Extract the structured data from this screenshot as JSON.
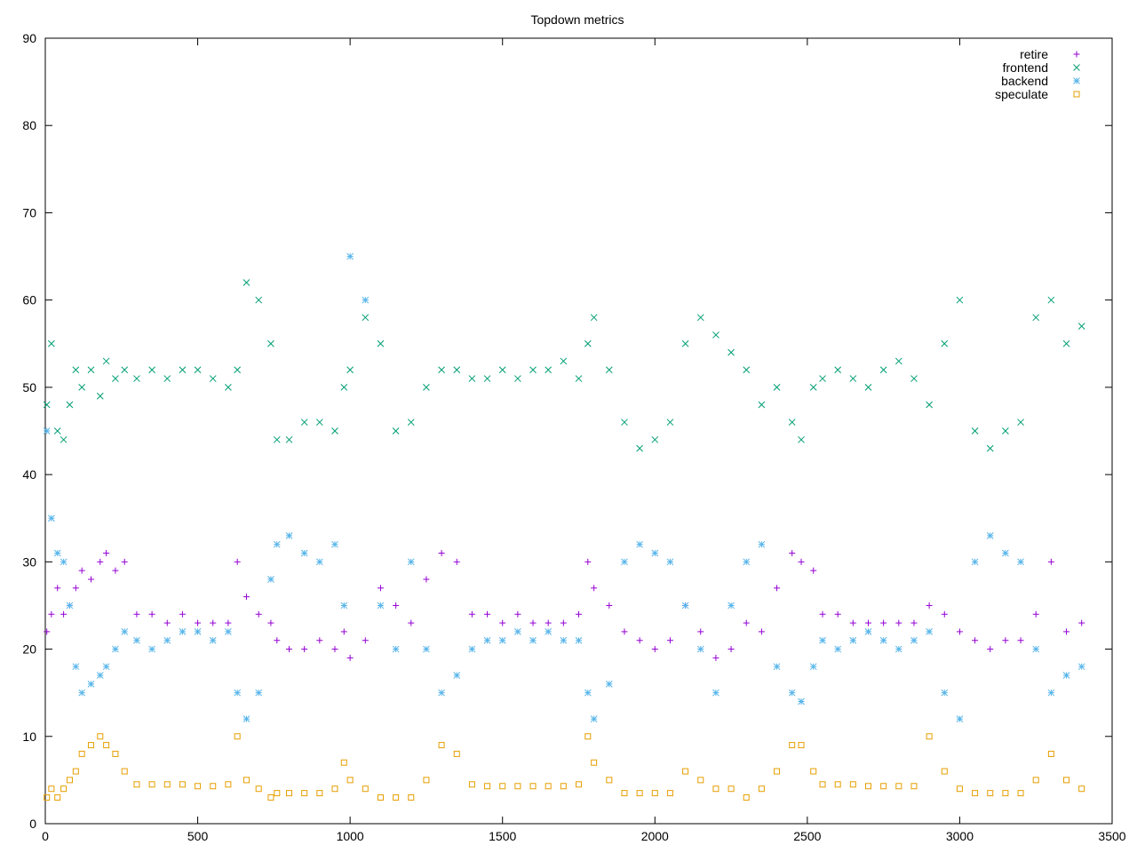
{
  "chart_data": {
    "type": "scatter",
    "title": "Topdown metrics",
    "xlabel": "",
    "ylabel": "",
    "xlim": [
      0,
      3500
    ],
    "ylim": [
      0,
      90
    ],
    "x_ticks": [
      0,
      500,
      1000,
      1500,
      2000,
      2500,
      3000,
      3500
    ],
    "y_ticks": [
      0,
      10,
      20,
      30,
      40,
      50,
      60,
      70,
      80,
      90
    ],
    "grid": false,
    "legend_position": "top-right",
    "series": [
      {
        "name": "retire",
        "marker": "plus",
        "color": "#9400d3",
        "points": [
          [
            5,
            22
          ],
          [
            20,
            24
          ],
          [
            40,
            27
          ],
          [
            60,
            24
          ],
          [
            80,
            25
          ],
          [
            100,
            27
          ],
          [
            120,
            29
          ],
          [
            150,
            28
          ],
          [
            180,
            30
          ],
          [
            200,
            31
          ],
          [
            230,
            29
          ],
          [
            260,
            30
          ],
          [
            300,
            24
          ],
          [
            350,
            24
          ],
          [
            400,
            23
          ],
          [
            450,
            24
          ],
          [
            500,
            23
          ],
          [
            550,
            23
          ],
          [
            600,
            23
          ],
          [
            630,
            30
          ],
          [
            660,
            26
          ],
          [
            700,
            24
          ],
          [
            740,
            23
          ],
          [
            760,
            21
          ],
          [
            800,
            20
          ],
          [
            850,
            20
          ],
          [
            900,
            21
          ],
          [
            950,
            20
          ],
          [
            980,
            22
          ],
          [
            1000,
            19
          ],
          [
            1050,
            21
          ],
          [
            1100,
            27
          ],
          [
            1150,
            25
          ],
          [
            1200,
            23
          ],
          [
            1250,
            28
          ],
          [
            1300,
            31
          ],
          [
            1350,
            30
          ],
          [
            1400,
            24
          ],
          [
            1450,
            24
          ],
          [
            1500,
            23
          ],
          [
            1550,
            24
          ],
          [
            1600,
            23
          ],
          [
            1650,
            23
          ],
          [
            1700,
            23
          ],
          [
            1750,
            24
          ],
          [
            1780,
            30
          ],
          [
            1800,
            27
          ],
          [
            1850,
            25
          ],
          [
            1900,
            22
          ],
          [
            1950,
            21
          ],
          [
            2000,
            20
          ],
          [
            2050,
            21
          ],
          [
            2100,
            25
          ],
          [
            2150,
            22
          ],
          [
            2200,
            19
          ],
          [
            2250,
            20
          ],
          [
            2300,
            23
          ],
          [
            2350,
            22
          ],
          [
            2400,
            27
          ],
          [
            2450,
            31
          ],
          [
            2480,
            30
          ],
          [
            2520,
            29
          ],
          [
            2550,
            24
          ],
          [
            2600,
            24
          ],
          [
            2650,
            23
          ],
          [
            2700,
            23
          ],
          [
            2750,
            23
          ],
          [
            2800,
            23
          ],
          [
            2850,
            23
          ],
          [
            2900,
            25
          ],
          [
            2950,
            24
          ],
          [
            3000,
            22
          ],
          [
            3050,
            21
          ],
          [
            3100,
            20
          ],
          [
            3150,
            21
          ],
          [
            3200,
            21
          ],
          [
            3250,
            24
          ],
          [
            3300,
            30
          ],
          [
            3350,
            22
          ],
          [
            3400,
            23
          ]
        ]
      },
      {
        "name": "frontend",
        "marker": "cross",
        "color": "#009e73",
        "points": [
          [
            5,
            48
          ],
          [
            20,
            55
          ],
          [
            40,
            45
          ],
          [
            60,
            44
          ],
          [
            80,
            48
          ],
          [
            100,
            52
          ],
          [
            120,
            50
          ],
          [
            150,
            52
          ],
          [
            180,
            49
          ],
          [
            200,
            53
          ],
          [
            230,
            51
          ],
          [
            260,
            52
          ],
          [
            300,
            51
          ],
          [
            350,
            52
          ],
          [
            400,
            51
          ],
          [
            450,
            52
          ],
          [
            500,
            52
          ],
          [
            550,
            51
          ],
          [
            600,
            50
          ],
          [
            630,
            52
          ],
          [
            660,
            62
          ],
          [
            700,
            60
          ],
          [
            740,
            55
          ],
          [
            760,
            44
          ],
          [
            800,
            44
          ],
          [
            850,
            46
          ],
          [
            900,
            46
          ],
          [
            950,
            45
          ],
          [
            980,
            50
          ],
          [
            1000,
            52
          ],
          [
            1050,
            58
          ],
          [
            1100,
            55
          ],
          [
            1150,
            45
          ],
          [
            1200,
            46
          ],
          [
            1250,
            50
          ],
          [
            1300,
            52
          ],
          [
            1350,
            52
          ],
          [
            1400,
            51
          ],
          [
            1450,
            51
          ],
          [
            1500,
            52
          ],
          [
            1550,
            51
          ],
          [
            1600,
            52
          ],
          [
            1650,
            52
          ],
          [
            1700,
            53
          ],
          [
            1750,
            51
          ],
          [
            1780,
            55
          ],
          [
            1800,
            58
          ],
          [
            1850,
            52
          ],
          [
            1900,
            46
          ],
          [
            1950,
            43
          ],
          [
            2000,
            44
          ],
          [
            2050,
            46
          ],
          [
            2100,
            55
          ],
          [
            2150,
            58
          ],
          [
            2200,
            56
          ],
          [
            2250,
            54
          ],
          [
            2300,
            52
          ],
          [
            2350,
            48
          ],
          [
            2400,
            50
          ],
          [
            2450,
            46
          ],
          [
            2480,
            44
          ],
          [
            2520,
            50
          ],
          [
            2550,
            51
          ],
          [
            2600,
            52
          ],
          [
            2650,
            51
          ],
          [
            2700,
            50
          ],
          [
            2750,
            52
          ],
          [
            2800,
            53
          ],
          [
            2850,
            51
          ],
          [
            2900,
            48
          ],
          [
            2950,
            55
          ],
          [
            3000,
            60
          ],
          [
            3050,
            45
          ],
          [
            3100,
            43
          ],
          [
            3150,
            45
          ],
          [
            3200,
            46
          ],
          [
            3250,
            58
          ],
          [
            3300,
            60
          ],
          [
            3350,
            55
          ],
          [
            3400,
            57
          ]
        ]
      },
      {
        "name": "backend",
        "marker": "star",
        "color": "#56b4e9",
        "points": [
          [
            5,
            45
          ],
          [
            20,
            35
          ],
          [
            40,
            31
          ],
          [
            60,
            30
          ],
          [
            80,
            25
          ],
          [
            100,
            18
          ],
          [
            120,
            15
          ],
          [
            150,
            16
          ],
          [
            180,
            17
          ],
          [
            200,
            18
          ],
          [
            230,
            20
          ],
          [
            260,
            22
          ],
          [
            300,
            21
          ],
          [
            350,
            20
          ],
          [
            400,
            21
          ],
          [
            450,
            22
          ],
          [
            500,
            22
          ],
          [
            550,
            21
          ],
          [
            600,
            22
          ],
          [
            630,
            15
          ],
          [
            660,
            12
          ],
          [
            700,
            15
          ],
          [
            740,
            28
          ],
          [
            760,
            32
          ],
          [
            800,
            33
          ],
          [
            850,
            31
          ],
          [
            900,
            30
          ],
          [
            950,
            32
          ],
          [
            980,
            25
          ],
          [
            1000,
            65
          ],
          [
            1050,
            60
          ],
          [
            1100,
            25
          ],
          [
            1150,
            20
          ],
          [
            1200,
            30
          ],
          [
            1250,
            20
          ],
          [
            1300,
            15
          ],
          [
            1350,
            17
          ],
          [
            1400,
            20
          ],
          [
            1450,
            21
          ],
          [
            1500,
            21
          ],
          [
            1550,
            22
          ],
          [
            1600,
            21
          ],
          [
            1650,
            22
          ],
          [
            1700,
            21
          ],
          [
            1750,
            21
          ],
          [
            1780,
            15
          ],
          [
            1800,
            12
          ],
          [
            1850,
            16
          ],
          [
            1900,
            30
          ],
          [
            1950,
            32
          ],
          [
            2000,
            31
          ],
          [
            2050,
            30
          ],
          [
            2100,
            25
          ],
          [
            2150,
            20
          ],
          [
            2200,
            15
          ],
          [
            2250,
            25
          ],
          [
            2300,
            30
          ],
          [
            2350,
            32
          ],
          [
            2400,
            18
          ],
          [
            2450,
            15
          ],
          [
            2480,
            14
          ],
          [
            2520,
            18
          ],
          [
            2550,
            21
          ],
          [
            2600,
            20
          ],
          [
            2650,
            21
          ],
          [
            2700,
            22
          ],
          [
            2750,
            21
          ],
          [
            2800,
            20
          ],
          [
            2850,
            21
          ],
          [
            2900,
            22
          ],
          [
            2950,
            15
          ],
          [
            3000,
            12
          ],
          [
            3050,
            30
          ],
          [
            3100,
            33
          ],
          [
            3150,
            31
          ],
          [
            3200,
            30
          ],
          [
            3250,
            20
          ],
          [
            3300,
            15
          ],
          [
            3350,
            17
          ],
          [
            3400,
            18
          ]
        ]
      },
      {
        "name": "speculate",
        "marker": "square",
        "color": "#e69f00",
        "points": [
          [
            5,
            3
          ],
          [
            20,
            4
          ],
          [
            40,
            3
          ],
          [
            60,
            4
          ],
          [
            80,
            5
          ],
          [
            100,
            6
          ],
          [
            120,
            8
          ],
          [
            150,
            9
          ],
          [
            180,
            10
          ],
          [
            200,
            9
          ],
          [
            230,
            8
          ],
          [
            260,
            6
          ],
          [
            300,
            4.5
          ],
          [
            350,
            4.5
          ],
          [
            400,
            4.5
          ],
          [
            450,
            4.5
          ],
          [
            500,
            4.3
          ],
          [
            550,
            4.3
          ],
          [
            600,
            4.5
          ],
          [
            630,
            10
          ],
          [
            660,
            5
          ],
          [
            700,
            4
          ],
          [
            740,
            3
          ],
          [
            760,
            3.5
          ],
          [
            800,
            3.5
          ],
          [
            850,
            3.5
          ],
          [
            900,
            3.5
          ],
          [
            950,
            4
          ],
          [
            980,
            7
          ],
          [
            1000,
            5
          ],
          [
            1050,
            4
          ],
          [
            1100,
            3
          ],
          [
            1150,
            3
          ],
          [
            1200,
            3
          ],
          [
            1250,
            5
          ],
          [
            1300,
            9
          ],
          [
            1350,
            8
          ],
          [
            1400,
            4.5
          ],
          [
            1450,
            4.3
          ],
          [
            1500,
            4.3
          ],
          [
            1550,
            4.3
          ],
          [
            1600,
            4.3
          ],
          [
            1650,
            4.3
          ],
          [
            1700,
            4.3
          ],
          [
            1750,
            4.5
          ],
          [
            1780,
            10
          ],
          [
            1800,
            7
          ],
          [
            1850,
            5
          ],
          [
            1900,
            3.5
          ],
          [
            1950,
            3.5
          ],
          [
            2000,
            3.5
          ],
          [
            2050,
            3.5
          ],
          [
            2100,
            6
          ],
          [
            2150,
            5
          ],
          [
            2200,
            4
          ],
          [
            2250,
            4
          ],
          [
            2300,
            3
          ],
          [
            2350,
            4
          ],
          [
            2400,
            6
          ],
          [
            2450,
            9
          ],
          [
            2480,
            9
          ],
          [
            2520,
            6
          ],
          [
            2550,
            4.5
          ],
          [
            2600,
            4.5
          ],
          [
            2650,
            4.5
          ],
          [
            2700,
            4.3
          ],
          [
            2750,
            4.3
          ],
          [
            2800,
            4.3
          ],
          [
            2850,
            4.3
          ],
          [
            2900,
            10
          ],
          [
            2950,
            6
          ],
          [
            3000,
            4
          ],
          [
            3050,
            3.5
          ],
          [
            3100,
            3.5
          ],
          [
            3150,
            3.5
          ],
          [
            3200,
            3.5
          ],
          [
            3250,
            5
          ],
          [
            3300,
            8
          ],
          [
            3350,
            5
          ],
          [
            3400,
            4
          ]
        ]
      }
    ]
  }
}
